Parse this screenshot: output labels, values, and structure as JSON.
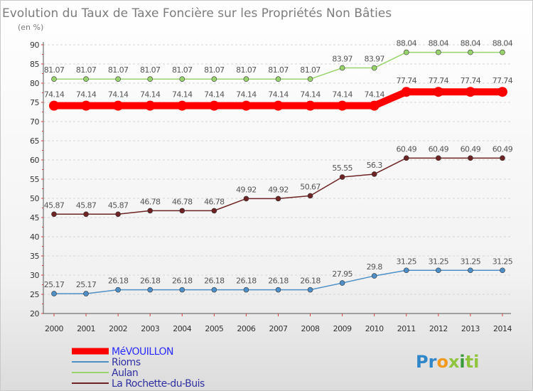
{
  "chart_data": {
    "type": "line",
    "title": "Evolution du Taux de Taxe Foncière sur les Propriétés Non Bâties",
    "subtitle": "(en %)",
    "x": [
      "2000",
      "2001",
      "2002",
      "2003",
      "2004",
      "2005",
      "2006",
      "2007",
      "2008",
      "2009",
      "2010",
      "2011",
      "2012",
      "2013",
      "2014"
    ],
    "ylim": [
      20,
      90
    ],
    "yticks": [
      20,
      25,
      30,
      35,
      40,
      45,
      50,
      55,
      60,
      65,
      70,
      75,
      80,
      85,
      90
    ],
    "ytick_labels": [
      "20",
      "25",
      "30",
      "35",
      "40",
      "45",
      "50",
      "55",
      "60",
      "65",
      "70",
      "75",
      "80",
      "85",
      "90"
    ],
    "grid": "horizontal dashed",
    "series": [
      {
        "key": "aulan",
        "name": "Aulan",
        "color": "#98d36c",
        "values": [
          81.07,
          81.07,
          81.07,
          81.07,
          81.07,
          81.07,
          81.07,
          81.07,
          81.07,
          83.97,
          83.97,
          88.04,
          88.04,
          88.04,
          88.04
        ],
        "labels": [
          "81.07",
          "81.07",
          "81.07",
          "81.07",
          "81.07",
          "81.07",
          "81.07",
          "81.07",
          "81.07",
          "83.97",
          "83.97",
          "88.04",
          "88.04",
          "88.04",
          "88.04"
        ]
      },
      {
        "key": "mevouillon",
        "name": "MéVOUILLON",
        "color": "#ff0000",
        "values": [
          74.14,
          74.14,
          74.14,
          74.14,
          74.14,
          74.14,
          74.14,
          74.14,
          74.14,
          74.14,
          74.14,
          77.74,
          77.74,
          77.74,
          77.74
        ],
        "labels": [
          "74.14",
          "74.14",
          "74.14",
          "74.14",
          "74.14",
          "74.14",
          "74.14",
          "74.14",
          "74.14",
          "74.14",
          "74.14",
          "77.74",
          "77.74",
          "77.74",
          "77.74"
        ]
      },
      {
        "key": "rochette",
        "name": "La Rochette-du-Buis",
        "color": "#6e2424",
        "values": [
          45.87,
          45.87,
          45.87,
          46.78,
          46.78,
          46.78,
          49.92,
          49.92,
          50.67,
          55.55,
          56.3,
          60.49,
          60.49,
          60.49,
          60.49
        ],
        "labels": [
          "45.87",
          "45.87",
          "45.87",
          "46.78",
          "46.78",
          "46.78",
          "49.92",
          "49.92",
          "50.67",
          "55.55",
          "56.3",
          "60.49",
          "60.49",
          "60.49",
          "60.49"
        ]
      },
      {
        "key": "rioms",
        "name": "Rioms",
        "color": "#4d8fc6",
        "values": [
          25.17,
          25.17,
          26.18,
          26.18,
          26.18,
          26.18,
          26.18,
          26.18,
          26.18,
          27.95,
          29.8,
          31.25,
          31.25,
          31.25,
          31.25
        ],
        "labels": [
          "25.17",
          "25.17",
          "26.18",
          "26.18",
          "26.18",
          "26.18",
          "26.18",
          "26.18",
          "26.18",
          "27.95",
          "29.8",
          "31.25",
          "31.25",
          "31.25",
          "31.25"
        ]
      }
    ],
    "legend": {
      "position": "bottom-left",
      "entries": [
        {
          "key": "mevouillon",
          "label": "MéVOUILLON"
        },
        {
          "key": "rioms",
          "label": "Rioms"
        },
        {
          "key": "aulan",
          "label": "Aulan"
        },
        {
          "key": "rochette",
          "label": "La Rochette-du-Buis"
        }
      ]
    },
    "colors": {
      "title": "#7d7d7d",
      "axis": "#555555",
      "grid": "#d5d5d5",
      "tick_marks": "#d04040",
      "legend_text_primary": "#2a2aff",
      "legend_text_other": "#3030a0"
    }
  },
  "logo": {
    "text": "Proxiti",
    "letters": [
      "P",
      "r",
      "o",
      "x",
      "i",
      "t",
      "i"
    ],
    "colors": [
      "#2f86c9",
      "#2f86c9",
      "#f29a1e",
      "#8fc43c",
      "#3a9a3a",
      "#8fc43c",
      "#8fc43c"
    ]
  }
}
